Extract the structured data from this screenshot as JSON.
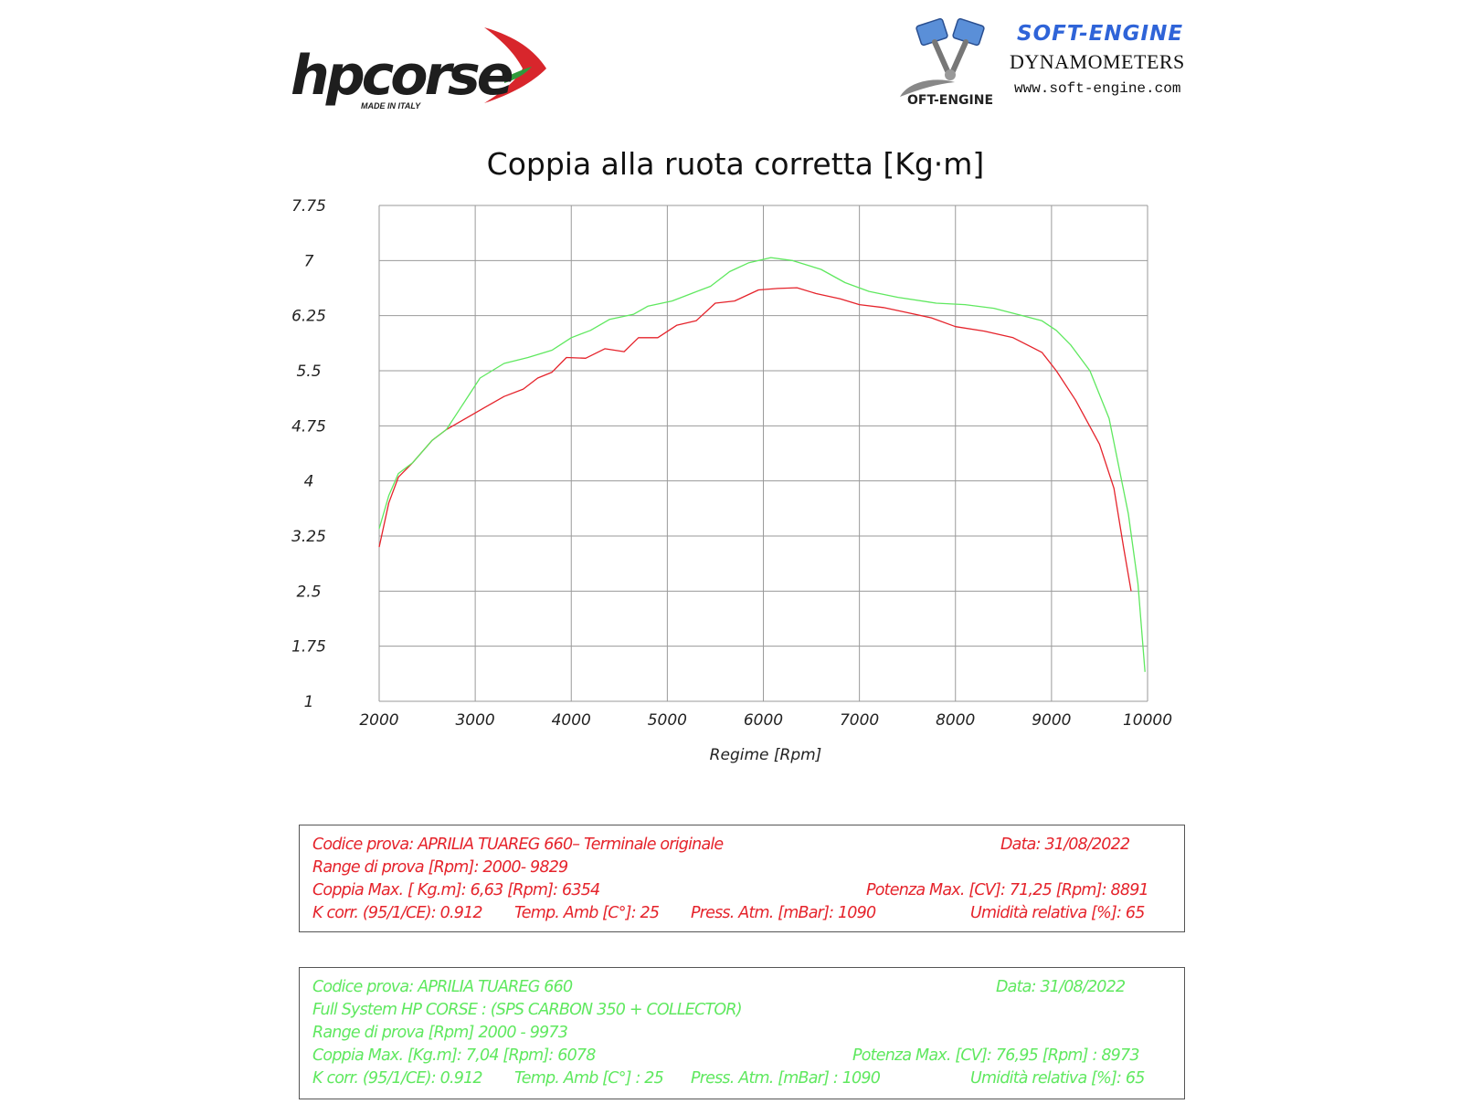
{
  "logos": {
    "hp_corse": {
      "brand": "hpcorse",
      "tagline": "MADE IN ITALY"
    },
    "soft_engine": {
      "brand": "SOFT-ENGINE",
      "subtitle": "DYNAMOMETERS",
      "url": "www.soft-engine.com",
      "emblem_text": "OFT-ENGINE"
    }
  },
  "colors": {
    "original": "#e5232b",
    "hp_corse": "#5fe85f",
    "grid": "#9a9a9a"
  },
  "chart_data": {
    "type": "line",
    "title": "Coppia alla ruota corretta [Kg·m]",
    "xlabel": "Regime [Rpm]",
    "ylabel": "",
    "xlim": [
      2000,
      10000
    ],
    "ylim": [
      1,
      7.75
    ],
    "x_ticks": [
      "2000",
      "3000",
      "4000",
      "5000",
      "6000",
      "7000",
      "8000",
      "9000",
      "10000"
    ],
    "y_ticks": [
      "1",
      "1.75",
      "2.5",
      "3.25",
      "4",
      "4.75",
      "5.5",
      "6.25",
      "7",
      "7.75"
    ],
    "grid": true,
    "series": [
      {
        "color": "#e5232b",
        "points": [
          [
            2000,
            3.1
          ],
          [
            2100,
            3.7
          ],
          [
            2200,
            4.05
          ],
          [
            2350,
            4.25
          ],
          [
            2550,
            4.55
          ],
          [
            2700,
            4.7
          ],
          [
            2900,
            4.85
          ],
          [
            3100,
            5.0
          ],
          [
            3300,
            5.15
          ],
          [
            3500,
            5.25
          ],
          [
            3650,
            5.4
          ],
          [
            3800,
            5.48
          ],
          [
            3950,
            5.68
          ],
          [
            4150,
            5.67
          ],
          [
            4350,
            5.8
          ],
          [
            4550,
            5.76
          ],
          [
            4700,
            5.95
          ],
          [
            4900,
            5.95
          ],
          [
            5100,
            6.12
          ],
          [
            5300,
            6.18
          ],
          [
            5500,
            6.42
          ],
          [
            5700,
            6.45
          ],
          [
            5950,
            6.6
          ],
          [
            6150,
            6.62
          ],
          [
            6350,
            6.63
          ],
          [
            6550,
            6.55
          ],
          [
            6800,
            6.48
          ],
          [
            7000,
            6.4
          ],
          [
            7250,
            6.36
          ],
          [
            7500,
            6.29
          ],
          [
            7750,
            6.22
          ],
          [
            8000,
            6.1
          ],
          [
            8300,
            6.04
          ],
          [
            8600,
            5.95
          ],
          [
            8900,
            5.75
          ],
          [
            9050,
            5.5
          ],
          [
            9250,
            5.1
          ],
          [
            9500,
            4.5
          ],
          [
            9650,
            3.9
          ],
          [
            9750,
            3.1
          ],
          [
            9829,
            2.5
          ]
        ]
      },
      {
        "color": "#5fe85f",
        "points": [
          [
            2000,
            3.35
          ],
          [
            2100,
            3.8
          ],
          [
            2200,
            4.1
          ],
          [
            2350,
            4.25
          ],
          [
            2550,
            4.55
          ],
          [
            2700,
            4.7
          ],
          [
            2850,
            5.0
          ],
          [
            3050,
            5.4
          ],
          [
            3300,
            5.6
          ],
          [
            3550,
            5.68
          ],
          [
            3800,
            5.78
          ],
          [
            4000,
            5.95
          ],
          [
            4200,
            6.05
          ],
          [
            4400,
            6.2
          ],
          [
            4650,
            6.27
          ],
          [
            4800,
            6.38
          ],
          [
            5050,
            6.45
          ],
          [
            5250,
            6.55
          ],
          [
            5450,
            6.65
          ],
          [
            5650,
            6.85
          ],
          [
            5850,
            6.97
          ],
          [
            6078,
            7.04
          ],
          [
            6300,
            7.0
          ],
          [
            6600,
            6.88
          ],
          [
            6850,
            6.7
          ],
          [
            7100,
            6.58
          ],
          [
            7400,
            6.5
          ],
          [
            7800,
            6.42
          ],
          [
            8100,
            6.4
          ],
          [
            8400,
            6.35
          ],
          [
            8700,
            6.25
          ],
          [
            8900,
            6.18
          ],
          [
            9050,
            6.05
          ],
          [
            9200,
            5.85
          ],
          [
            9400,
            5.5
          ],
          [
            9600,
            4.85
          ],
          [
            9800,
            3.55
          ],
          [
            9900,
            2.6
          ],
          [
            9973,
            1.4
          ]
        ]
      }
    ]
  },
  "test_original": {
    "code": "Codice prova: APRILIA TUAREG 660– Terminale originale",
    "date": "Data: 31/08/2022",
    "range": "Range di prova  [Rpm]: 2000- 9829",
    "torque_max": "Coppia Max. [ Kg.m]:  6,63 [Rpm]: 6354",
    "power_max": "Potenza Max. [CV]:   71,25  [Rpm]: 8891",
    "k_corr": "K corr. (95/1/CE): 0.912",
    "temp": "Temp. Amb  [C°]: 25",
    "press": "Press. Atm.  [mBar]: 1090",
    "humidity": "Umidità relativa [%]: 65"
  },
  "test_hp_corse": {
    "code": "Codice prova: APRILIA TUAREG 660",
    "date": "Data: 31/08/2022",
    "system": "Full System HP CORSE :  (SPS CARBON 350 +  COLLECTOR)",
    "range": "Range di prova [Rpm] 2000 - 9973",
    "torque_max": "Coppia Max.  [Kg.m]:  7,04  [Rpm]: 6078",
    "power_max": "Potenza Max. [CV]:  76,95  [Rpm] : 8973",
    "k_corr": "K corr. (95/1/CE): 0.912",
    "temp": "Temp. Amb [C°] : 25",
    "press": "Press. Atm. [mBar] : 1090",
    "humidity": "Umidità relativa [%]: 65"
  }
}
